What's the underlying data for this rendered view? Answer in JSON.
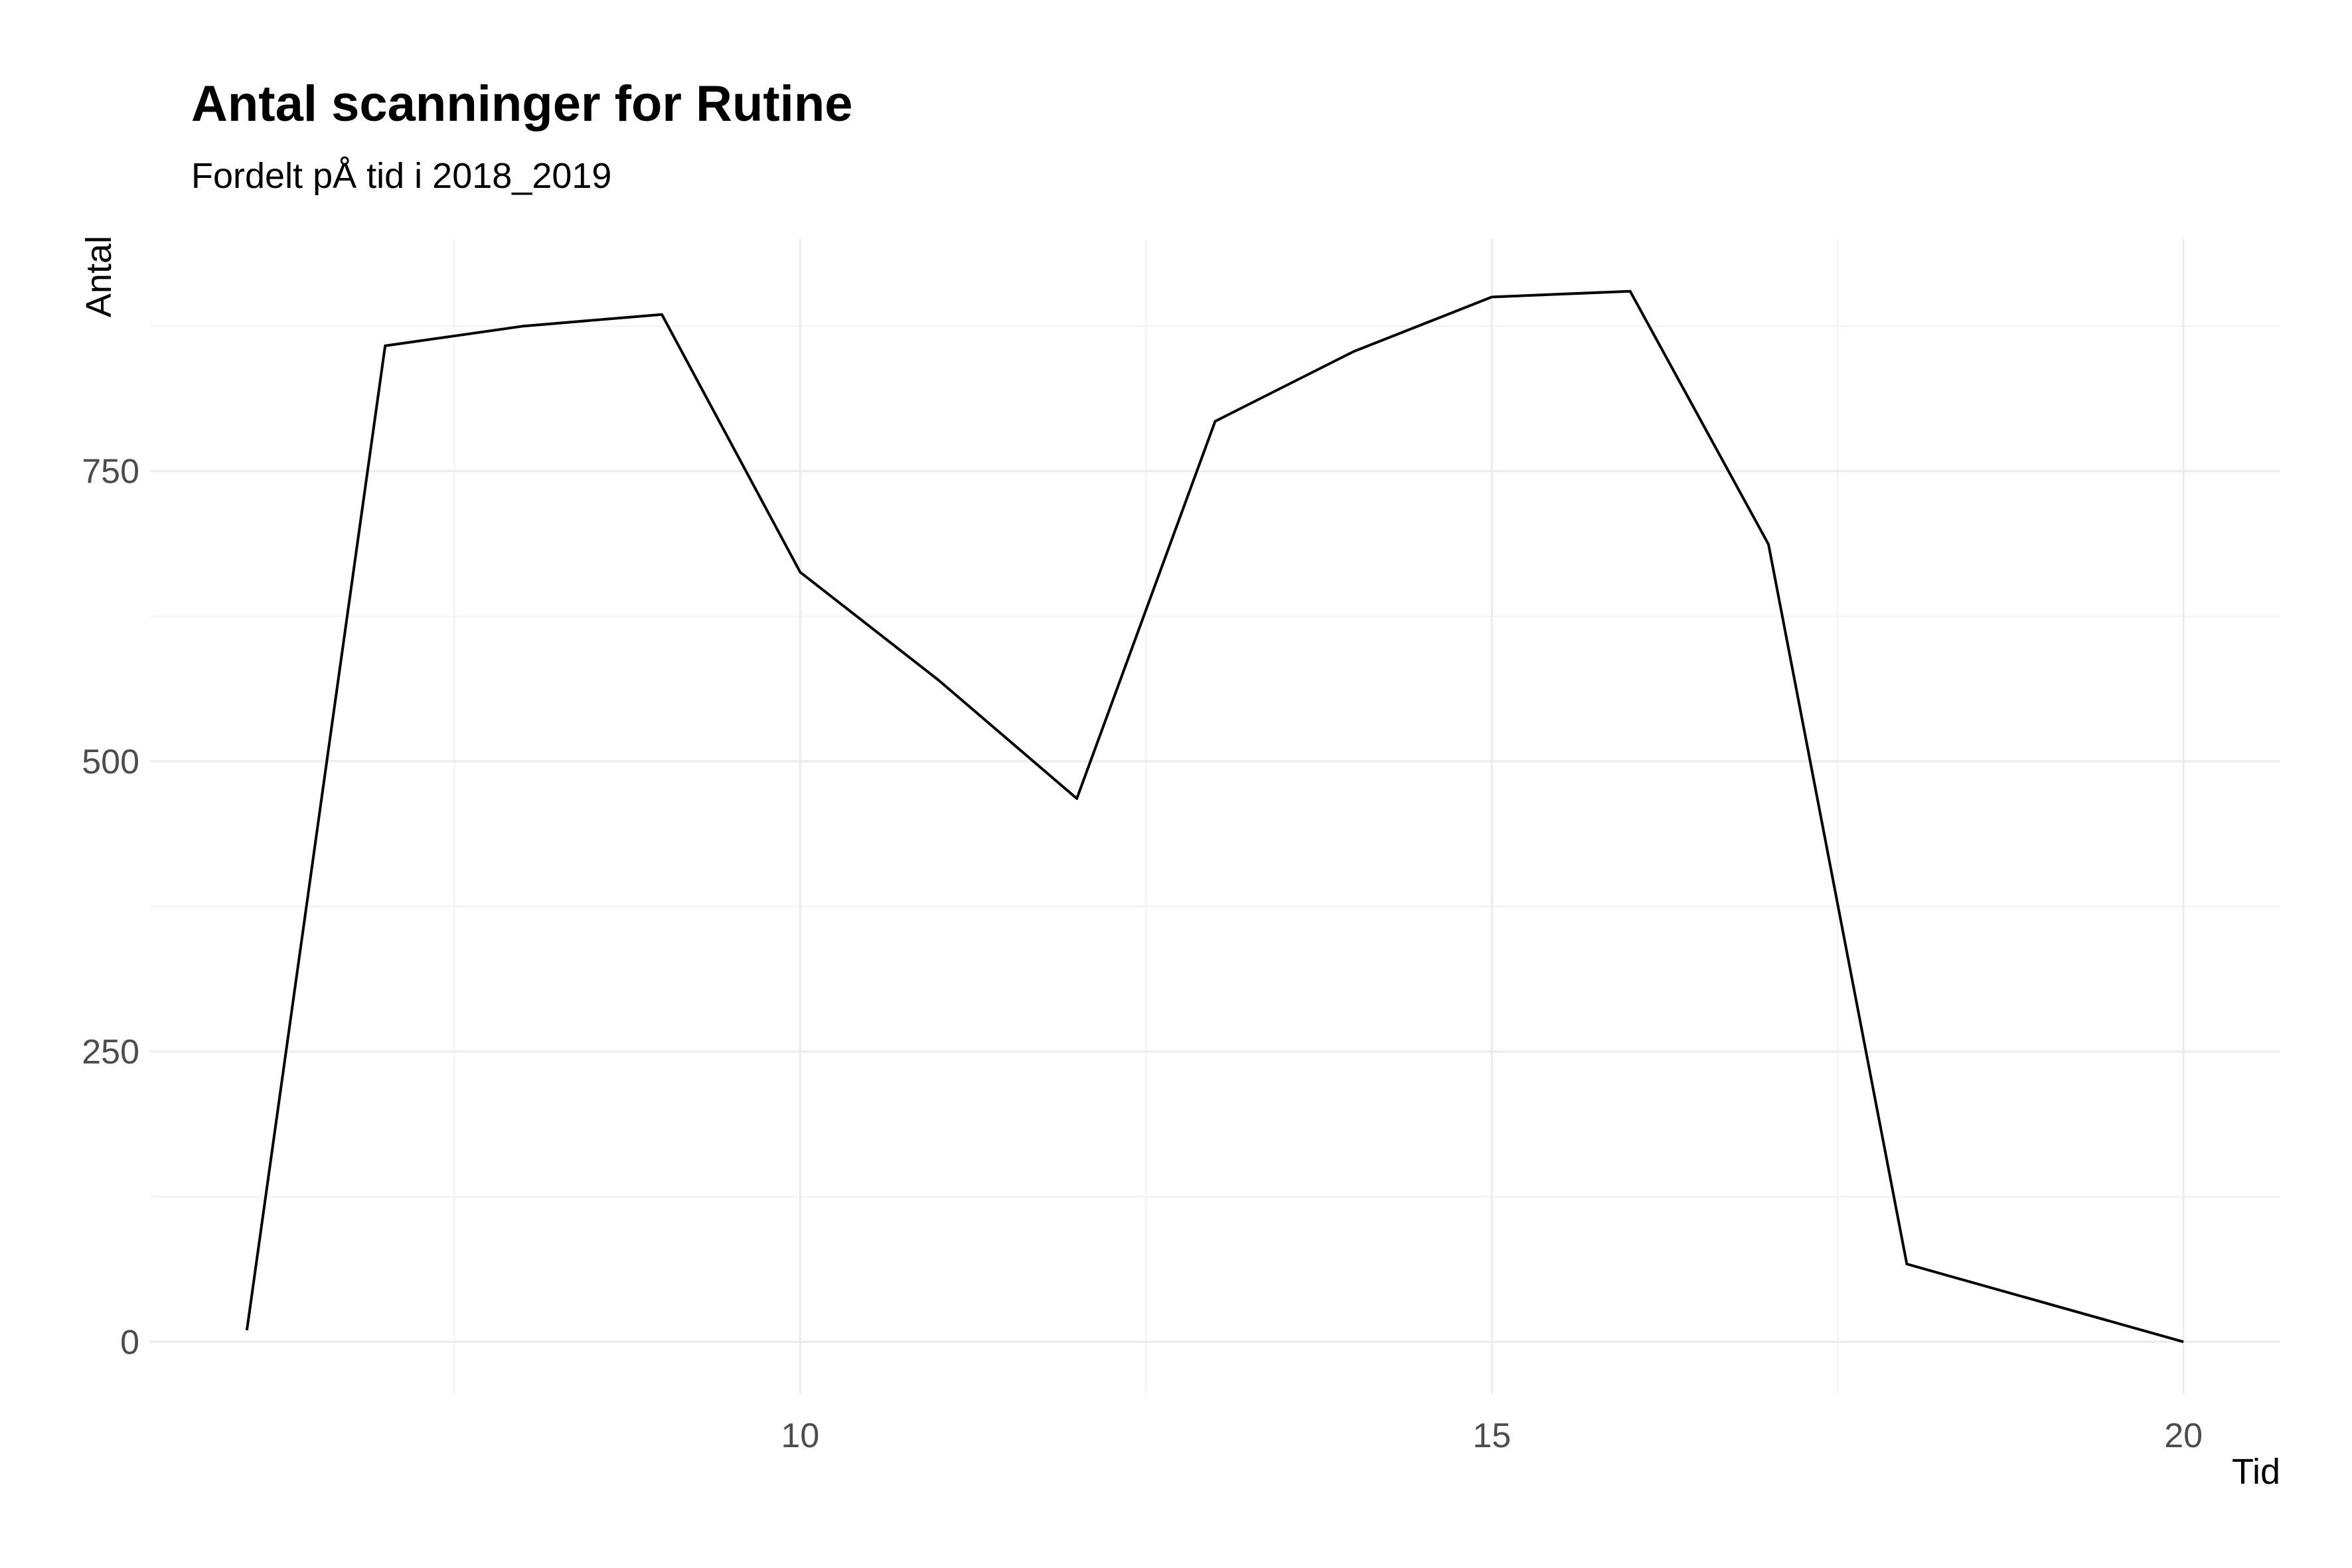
{
  "chart_data": {
    "type": "line",
    "title": "Antal scanninger for Rutine",
    "subtitle": "Fordelt pÅ tid i 2018_2019",
    "xlabel": "Tid",
    "ylabel": "Antal",
    "x": [
      6,
      7,
      8,
      9,
      10,
      11,
      12,
      13,
      14,
      15,
      16,
      17,
      18,
      20
    ],
    "series": [
      {
        "values": [
          10,
          858,
          875,
          885,
          663,
          570,
          468,
          793,
          853,
          900,
          905,
          687,
          67,
          0
        ]
      }
    ],
    "x_ticks": [
      10,
      15,
      20
    ],
    "y_ticks": [
      0,
      250,
      500,
      750
    ],
    "xlim": [
      5.3,
      20.7
    ],
    "ylim": [
      -45,
      950
    ],
    "grid": true,
    "line_color": "#000000"
  }
}
